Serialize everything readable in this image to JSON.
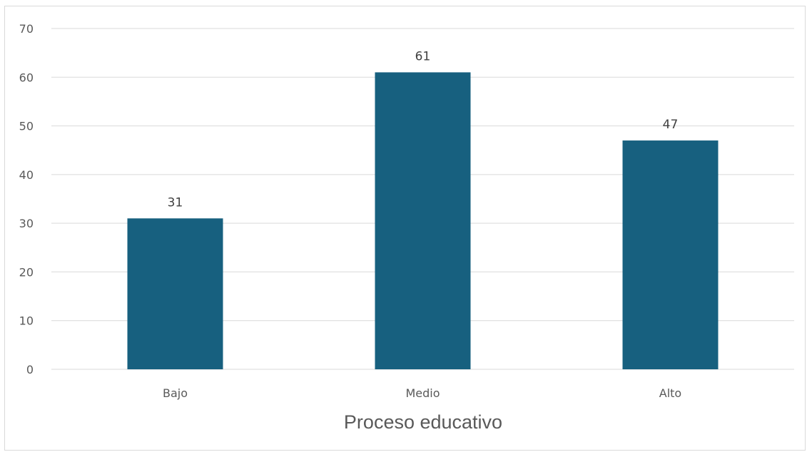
{
  "chart_data": {
    "type": "bar",
    "categories": [
      "Bajo",
      "Medio",
      "Alto"
    ],
    "values": [
      31,
      61,
      47
    ],
    "data_labels": [
      "31",
      "61",
      "47"
    ],
    "title": "",
    "xlabel": "Proceso educativo",
    "ylabel": "",
    "ylim": [
      0,
      70
    ],
    "yticks": [
      0,
      10,
      20,
      30,
      40,
      50,
      60,
      70
    ],
    "ytick_labels": [
      "0",
      "10",
      "20",
      "30",
      "40",
      "50",
      "60",
      "70"
    ],
    "grid": true,
    "legend": "none",
    "bar_color": "#17607f",
    "grid_color": "#d9d9d9"
  }
}
